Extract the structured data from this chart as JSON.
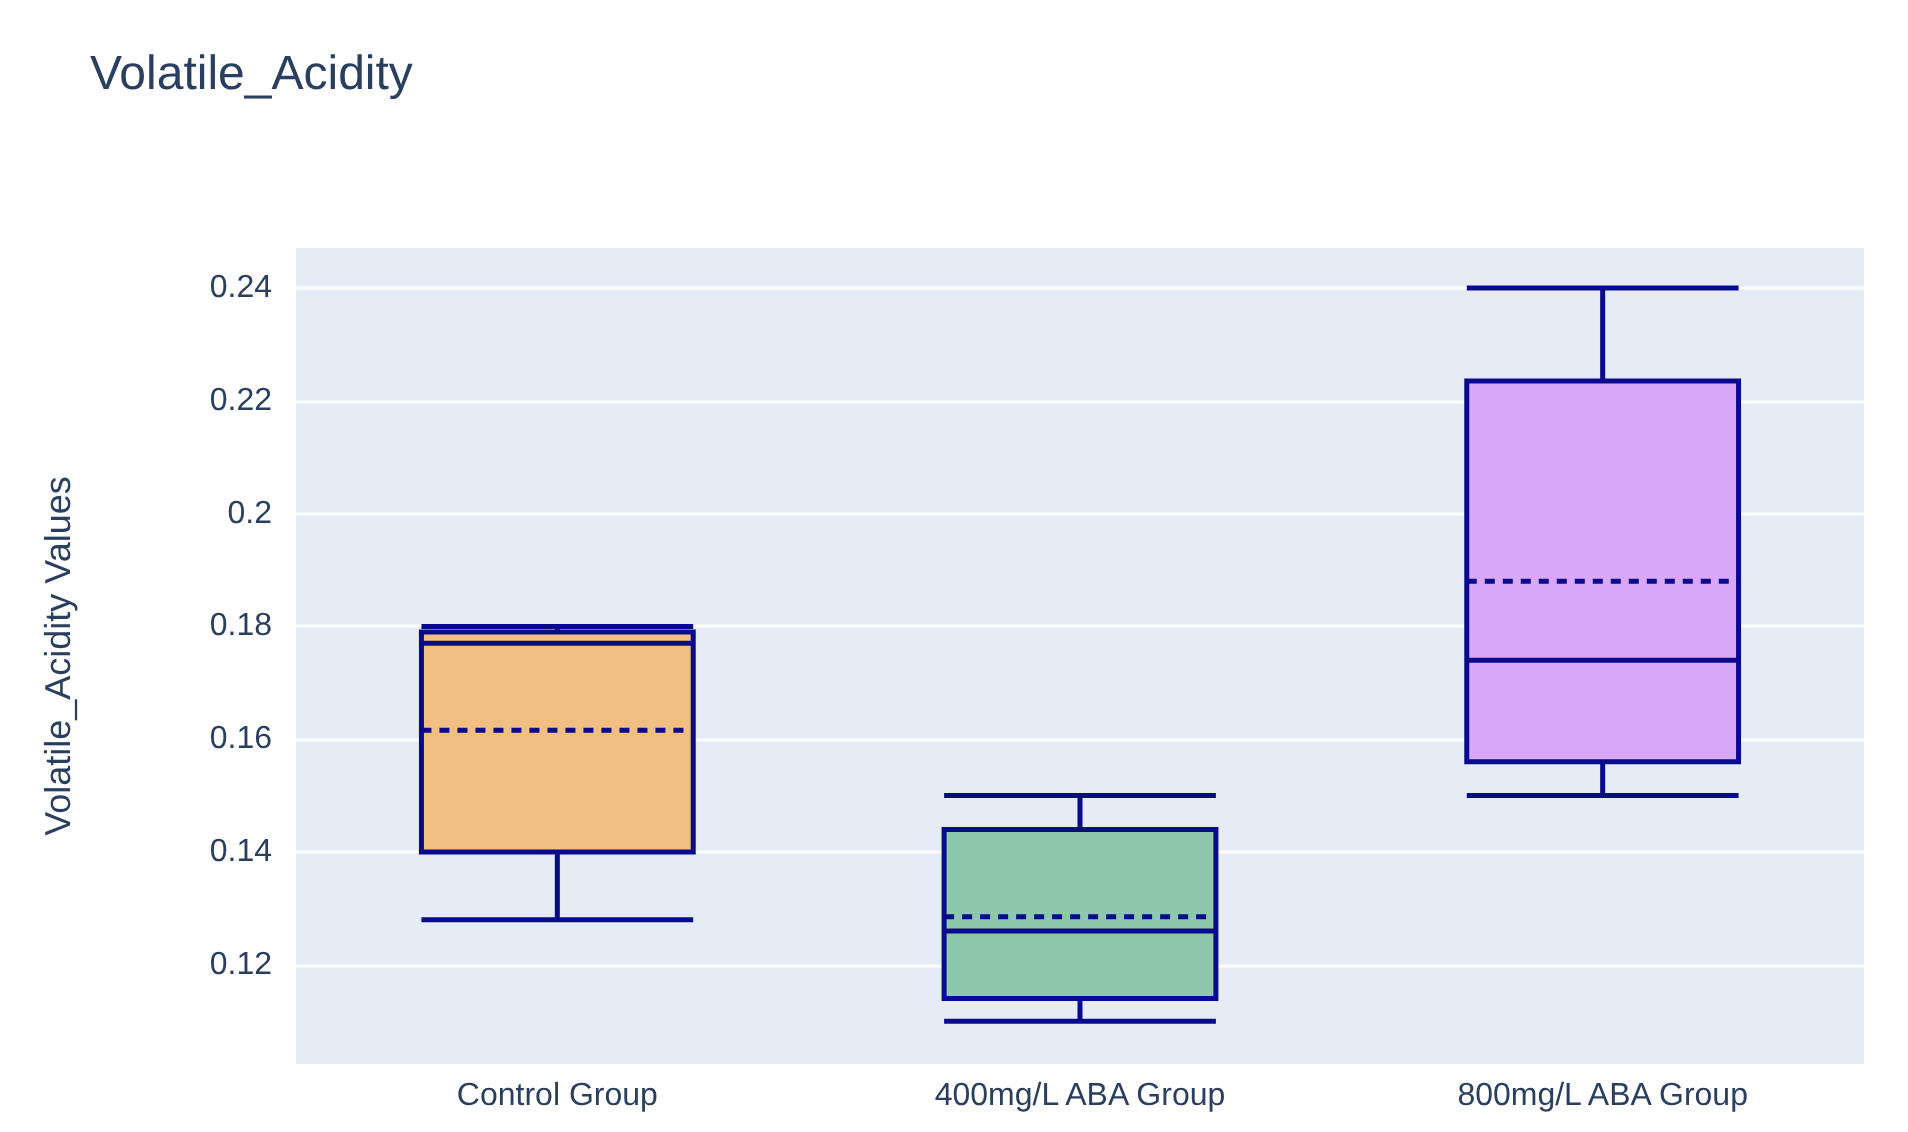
{
  "chart_data": {
    "type": "box",
    "title": "Volatile_Acidity",
    "ylabel": "Volatile_Acidity Values",
    "categories": [
      "Control Group",
      "400mg/L ABA Group",
      "800mg/L ABA Group"
    ],
    "colors": [
      "#f2bf83",
      "#8ec8aa",
      "#d9a8fb"
    ],
    "boxes": [
      {
        "low": 0.128,
        "q1": 0.14,
        "median": 0.177,
        "q3": 0.179,
        "high": 0.18,
        "mean": 0.1616
      },
      {
        "low": 0.11,
        "q1": 0.114,
        "median": 0.126,
        "q3": 0.144,
        "high": 0.15,
        "mean": 0.1285
      },
      {
        "low": 0.15,
        "q1": 0.156,
        "median": 0.174,
        "q3": 0.2235,
        "high": 0.24,
        "mean": 0.188
      }
    ],
    "ylim": [
      0.1024,
      0.2471
    ],
    "yticks": [
      0.12,
      0.14,
      0.16,
      0.18,
      0.2,
      0.22,
      0.24
    ],
    "grid": "y"
  }
}
